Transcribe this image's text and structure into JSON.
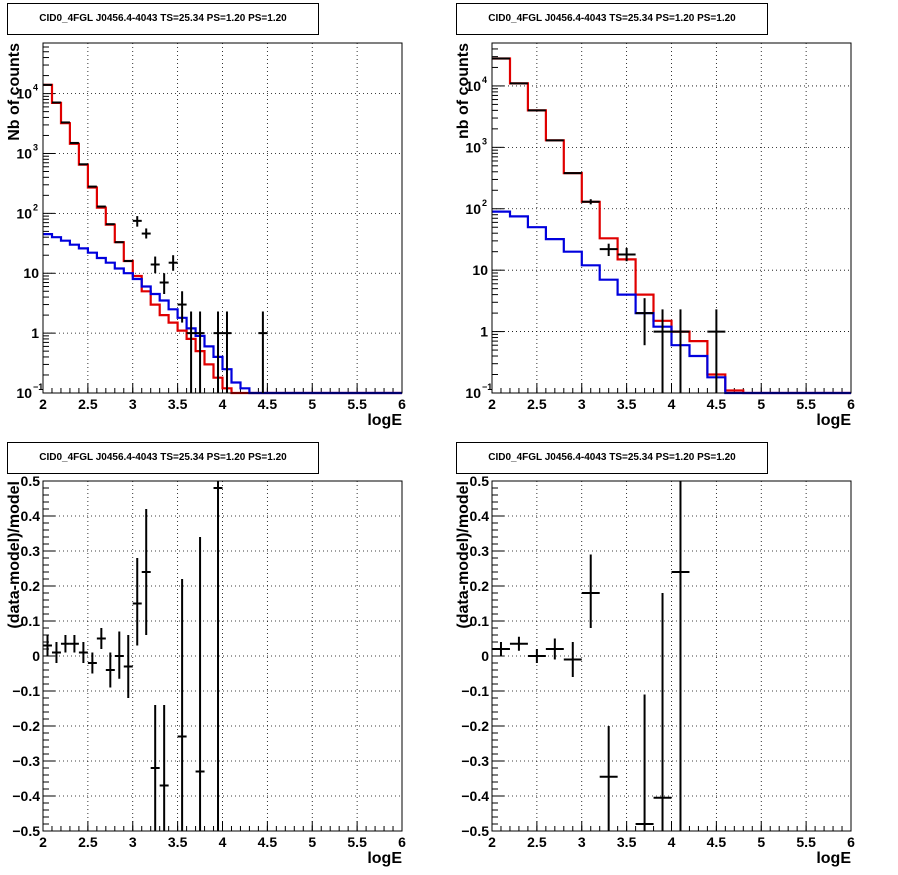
{
  "colors": {
    "data": "#000000",
    "total_model": "#e00000",
    "component": "#0000dd",
    "grid": "#000000",
    "background": "#ffffff"
  },
  "chart_data": [
    {
      "type": "line",
      "title": "CID0_4FGL J0456.4-4043 TS=25.34 PS=1.20 PS=1.20",
      "xlabel": "logE",
      "ylabel": "Nb of counts",
      "xlim": [
        2,
        6
      ],
      "ylim": [
        0.1,
        70000
      ],
      "y_scale": "log",
      "grid": true,
      "x_ticks": [
        "2",
        "2.5",
        "3",
        "3.5",
        "4",
        "4.5",
        "5",
        "5.5",
        "6"
      ],
      "y_ticks": [
        {
          "value": 0.1,
          "label": "10",
          "exp": "−1"
        },
        {
          "value": 1,
          "label": "1",
          "exp": ""
        },
        {
          "value": 10,
          "label": "10",
          "exp": ""
        },
        {
          "value": 100,
          "label": "10",
          "exp": "2"
        },
        {
          "value": 1000,
          "label": "10",
          "exp": "3"
        },
        {
          "value": 10000,
          "label": "10",
          "exp": "4"
        }
      ],
      "bin_edges": [
        2.0,
        2.1,
        2.2,
        2.3,
        2.4,
        2.5,
        2.6,
        2.7,
        2.8,
        2.9,
        3.0,
        3.1,
        3.2,
        3.3,
        3.4,
        3.5,
        3.6,
        3.7,
        3.8,
        3.9,
        4.0,
        4.1,
        4.2,
        4.3,
        4.4,
        4.5,
        4.6,
        4.7,
        4.8,
        4.9,
        5.0,
        5.1,
        5.2,
        5.3,
        5.4,
        5.5,
        5.6,
        5.7,
        5.8,
        5.9,
        6.0
      ],
      "series": [
        {
          "role": "total_model",
          "color": "#e00000",
          "values": [
            14000,
            7000,
            3200,
            1450,
            650,
            270,
            125,
            65,
            33,
            16,
            9,
            5,
            3,
            2,
            1.5,
            1.1,
            0.8,
            0.5,
            0.3,
            0.18,
            0.12,
            0.1,
            0.1,
            0.1,
            0.1,
            0.1,
            0.1,
            0.1,
            0.1,
            0.1,
            0.1,
            0.1,
            0.1,
            0.1,
            0.1,
            0.1,
            0.1,
            0.1,
            0.1,
            0.1
          ]
        },
        {
          "role": "component",
          "color": "#0000dd",
          "values": [
            45,
            40,
            35,
            30,
            26,
            22,
            18,
            15,
            12,
            10,
            8,
            6,
            4.5,
            3.5,
            2.5,
            1.8,
            1.2,
            0.9,
            0.6,
            0.4,
            0.25,
            0.15,
            0.12,
            0.1,
            0.1,
            0.1,
            0.1,
            0.1,
            0.1,
            0.1,
            0.1,
            0.1,
            0.1,
            0.1,
            0.1,
            0.1,
            0.1,
            0.1,
            0.1,
            0.1
          ]
        }
      ],
      "points": [
        {
          "x": 2.05,
          "y": 14000
        },
        {
          "x": 2.15,
          "y": 7100
        },
        {
          "x": 2.25,
          "y": 3300
        },
        {
          "x": 2.35,
          "y": 1500
        },
        {
          "x": 2.45,
          "y": 660
        },
        {
          "x": 2.55,
          "y": 280
        },
        {
          "x": 2.65,
          "y": 130
        },
        {
          "x": 2.75,
          "y": 66
        },
        {
          "x": 2.85,
          "y": 33
        },
        {
          "x": 2.95,
          "y": 16
        },
        {
          "x": 3.05,
          "y": 75,
          "lo": 60,
          "hi": 90
        },
        {
          "x": 3.15,
          "y": 46,
          "lo": 38,
          "hi": 56
        },
        {
          "x": 3.25,
          "y": 14,
          "lo": 10,
          "hi": 19
        },
        {
          "x": 3.35,
          "y": 7,
          "lo": 4.5,
          "hi": 10
        },
        {
          "x": 3.45,
          "y": 15,
          "lo": 11,
          "hi": 20
        },
        {
          "x": 3.55,
          "y": 3,
          "lo": 1.5,
          "hi": 5
        },
        {
          "x": 3.65,
          "y": 1,
          "lo": 0.1,
          "hi": 2.3
        },
        {
          "x": 3.75,
          "y": 1,
          "lo": 0.1,
          "hi": 2.3
        },
        {
          "x": 3.95,
          "y": 1,
          "lo": 0.1,
          "hi": 2.3
        },
        {
          "x": 4.05,
          "y": 1,
          "lo": 0.1,
          "hi": 2.3
        },
        {
          "x": 4.45,
          "y": 1,
          "lo": 0.1,
          "hi": 2.3
        }
      ]
    },
    {
      "type": "line",
      "title": "CID0_4FGL J0456.4-4043 TS=25.34 PS=1.20 PS=1.20",
      "xlabel": "logE",
      "ylabel": "nb of counts",
      "xlim": [
        2,
        6
      ],
      "ylim": [
        0.1,
        50000
      ],
      "y_scale": "log",
      "grid": true,
      "x_ticks": [
        "2",
        "2.5",
        "3",
        "3.5",
        "4",
        "4.5",
        "5",
        "5.5",
        "6"
      ],
      "y_ticks": [
        {
          "value": 0.1,
          "label": "10",
          "exp": "−1"
        },
        {
          "value": 1,
          "label": "1",
          "exp": ""
        },
        {
          "value": 10,
          "label": "10",
          "exp": ""
        },
        {
          "value": 100,
          "label": "10",
          "exp": "2"
        },
        {
          "value": 1000,
          "label": "10",
          "exp": "3"
        },
        {
          "value": 10000,
          "label": "10",
          "exp": "4"
        }
      ],
      "bin_edges": [
        2.0,
        2.2,
        2.4,
        2.6,
        2.8,
        3.0,
        3.2,
        3.4,
        3.6,
        3.8,
        4.0,
        4.2,
        4.4,
        4.6,
        4.8,
        5.0,
        5.2,
        5.4,
        5.6,
        5.8,
        6.0
      ],
      "series": [
        {
          "role": "total_model",
          "color": "#e00000",
          "values": [
            28000,
            11000,
            4000,
            1300,
            380,
            130,
            33,
            15,
            4,
            1.5,
            1,
            0.7,
            0.2,
            0.11,
            0.1,
            0.1,
            0.1,
            0.1,
            0.1,
            0.1
          ]
        },
        {
          "role": "component",
          "color": "#0000dd",
          "values": [
            90,
            75,
            50,
            32,
            20,
            12,
            7,
            4,
            2,
            1.2,
            0.6,
            0.4,
            0.18,
            0.1,
            0.1,
            0.1,
            0.1,
            0.1,
            0.1,
            0.1
          ]
        }
      ],
      "points": [
        {
          "x": 2.1,
          "y": 28000
        },
        {
          "x": 2.3,
          "y": 11000
        },
        {
          "x": 2.5,
          "y": 4000
        },
        {
          "x": 2.7,
          "y": 1300
        },
        {
          "x": 2.9,
          "y": 380
        },
        {
          "x": 3.1,
          "y": 130,
          "lo": 118,
          "hi": 143
        },
        {
          "x": 3.3,
          "y": 22,
          "lo": 17,
          "hi": 27
        },
        {
          "x": 3.5,
          "y": 18,
          "lo": 14,
          "hi": 23
        },
        {
          "x": 3.7,
          "y": 2,
          "lo": 0.6,
          "hi": 3.5
        },
        {
          "x": 3.9,
          "y": 1,
          "lo": 0.1,
          "hi": 2.3
        },
        {
          "x": 4.1,
          "y": 1,
          "lo": 0.1,
          "hi": 2.3
        },
        {
          "x": 4.5,
          "y": 1,
          "lo": 0.1,
          "hi": 2.3
        }
      ]
    },
    {
      "type": "scatter",
      "title": "CID0_4FGL J0456.4-4043 TS=25.34 PS=1.20 PS=1.20",
      "xlabel": "logE",
      "ylabel": "(data-model)/model",
      "xlim": [
        2,
        6
      ],
      "ylim": [
        -0.5,
        0.5
      ],
      "grid": true,
      "x_ticks": [
        "2",
        "2.5",
        "3",
        "3.5",
        "4",
        "4.5",
        "5",
        "5.5",
        "6"
      ],
      "y_ticks": [
        "−0.5",
        "−0.4",
        "−0.3",
        "−0.2",
        "−0.1",
        "0",
        "0.1",
        "0.2",
        "0.3",
        "0.4",
        "0.5"
      ],
      "xerr": 0.05,
      "points": [
        {
          "x": 2.05,
          "y": 0.03,
          "lo": 0.0,
          "hi": 0.06
        },
        {
          "x": 2.15,
          "y": 0.01,
          "lo": -0.02,
          "hi": 0.04
        },
        {
          "x": 2.25,
          "y": 0.035,
          "lo": 0.01,
          "hi": 0.06
        },
        {
          "x": 2.35,
          "y": 0.035,
          "lo": 0.01,
          "hi": 0.06
        },
        {
          "x": 2.45,
          "y": 0.01,
          "lo": -0.02,
          "hi": 0.04
        },
        {
          "x": 2.55,
          "y": -0.02,
          "lo": -0.05,
          "hi": 0.01
        },
        {
          "x": 2.65,
          "y": 0.05,
          "lo": 0.02,
          "hi": 0.08
        },
        {
          "x": 2.75,
          "y": -0.04,
          "lo": -0.09,
          "hi": 0.01
        },
        {
          "x": 2.85,
          "y": 0.0,
          "lo": -0.065,
          "hi": 0.07
        },
        {
          "x": 2.95,
          "y": -0.03,
          "lo": -0.12,
          "hi": 0.06
        },
        {
          "x": 3.05,
          "y": 0.15,
          "lo": 0.03,
          "hi": 0.28
        },
        {
          "x": 3.15,
          "y": 0.24,
          "lo": 0.06,
          "hi": 0.42
        },
        {
          "x": 3.25,
          "y": -0.32,
          "lo": -0.5,
          "hi": -0.14
        },
        {
          "x": 3.35,
          "y": -0.37,
          "lo": -0.5,
          "hi": -0.14
        },
        {
          "x": 3.55,
          "y": -0.23,
          "lo": -0.5,
          "hi": 0.22
        },
        {
          "x": 3.75,
          "y": -0.33,
          "lo": -0.5,
          "hi": 0.34
        },
        {
          "x": 3.95,
          "y": 0.48,
          "lo": -0.5,
          "hi": 0.5
        }
      ]
    },
    {
      "type": "scatter",
      "title": "CID0_4FGL J0456.4-4043 TS=25.34 PS=1.20 PS=1.20",
      "xlabel": "logE",
      "ylabel": "(data-model)/model",
      "xlim": [
        2,
        6
      ],
      "ylim": [
        -0.5,
        0.5
      ],
      "grid": true,
      "x_ticks": [
        "2",
        "2.5",
        "3",
        "3.5",
        "4",
        "4.5",
        "5",
        "5.5",
        "6"
      ],
      "y_ticks": [
        "−0.5",
        "−0.4",
        "−0.3",
        "−0.2",
        "−0.1",
        "0",
        "0.1",
        "0.2",
        "0.3",
        "0.4",
        "0.5"
      ],
      "xerr": 0.1,
      "points": [
        {
          "x": 2.1,
          "y": 0.02,
          "lo": 0.0,
          "hi": 0.04
        },
        {
          "x": 2.3,
          "y": 0.035,
          "lo": 0.015,
          "hi": 0.055
        },
        {
          "x": 2.5,
          "y": 0.0,
          "lo": -0.02,
          "hi": 0.02
        },
        {
          "x": 2.7,
          "y": 0.02,
          "lo": -0.01,
          "hi": 0.05
        },
        {
          "x": 2.9,
          "y": -0.01,
          "lo": -0.06,
          "hi": 0.04
        },
        {
          "x": 3.1,
          "y": 0.18,
          "lo": 0.08,
          "hi": 0.29
        },
        {
          "x": 3.3,
          "y": -0.345,
          "lo": -0.5,
          "hi": -0.2
        },
        {
          "x": 3.7,
          "y": -0.48,
          "lo": -0.5,
          "hi": -0.11
        },
        {
          "x": 3.9,
          "y": -0.405,
          "lo": -0.5,
          "hi": 0.18
        },
        {
          "x": 4.1,
          "y": 0.24,
          "lo": -0.5,
          "hi": 0.5
        }
      ]
    }
  ]
}
